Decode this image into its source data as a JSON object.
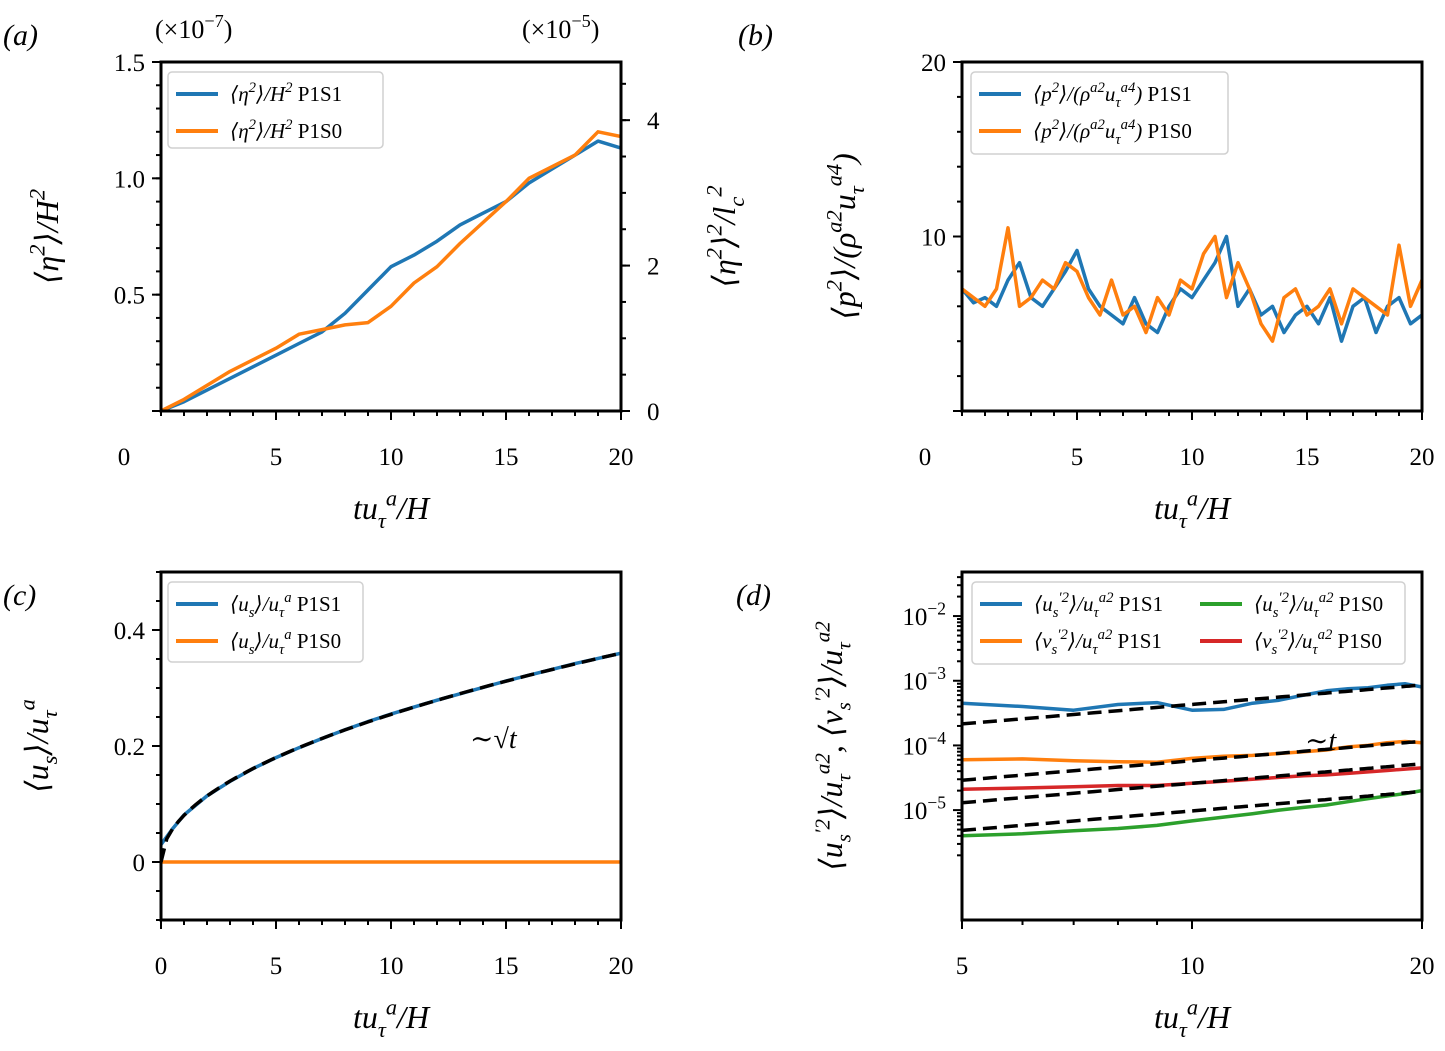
{
  "chart_data": [
    {
      "panel": "(a)",
      "type": "line",
      "xlabel": "tu_{τ}^{a}/H",
      "ylabel": "⟨η^{2}⟩/H^{2}",
      "ylabel_right": "⟨η^{2}⟩^{2}/l_{c}^{2}",
      "multiplier_left": "(×10^{−7})",
      "multiplier_right": "(×10^{−5})",
      "xlim": [
        0,
        20
      ],
      "ylim": [
        0,
        1.5
      ],
      "ylim_right": [
        0,
        4.8
      ],
      "xticks": [
        "5",
        "10",
        "15",
        "20"
      ],
      "yticks": [
        "0.5",
        "1.0",
        "1.5"
      ],
      "yticks_right": [
        "0",
        "2",
        "4"
      ],
      "corner_zero": "0",
      "legend_placement": "top-left",
      "grid": false,
      "series": [
        {
          "math": "⟨η^{2}⟩/H^{2}",
          "case": "P1S1",
          "color": "#1f77b4",
          "x": [
            0,
            1,
            2,
            3,
            4,
            5,
            6,
            7,
            8,
            9,
            10,
            11,
            12,
            13,
            14,
            15,
            16,
            17,
            18,
            19,
            20
          ],
          "y": [
            0,
            0.04,
            0.09,
            0.14,
            0.19,
            0.24,
            0.29,
            0.34,
            0.42,
            0.52,
            0.62,
            0.67,
            0.73,
            0.8,
            0.85,
            0.9,
            0.98,
            1.04,
            1.1,
            1.16,
            1.13
          ]
        },
        {
          "math": "⟨η^{2}⟩/H^{2}",
          "case": "P1S0",
          "color": "#ff7f0e",
          "x": [
            0,
            1,
            2,
            3,
            4,
            5,
            6,
            7,
            8,
            9,
            10,
            11,
            12,
            13,
            14,
            15,
            16,
            17,
            18,
            19,
            20
          ],
          "y": [
            0,
            0.05,
            0.11,
            0.17,
            0.22,
            0.27,
            0.33,
            0.35,
            0.37,
            0.38,
            0.45,
            0.55,
            0.62,
            0.72,
            0.81,
            0.9,
            1.0,
            1.05,
            1.1,
            1.2,
            1.18
          ]
        }
      ]
    },
    {
      "panel": "(b)",
      "type": "line",
      "xlabel": "tu_{τ}^{a}/H",
      "ylabel": "⟨p^{2}⟩/(ρ^{a2}u_{τ}^{a4})",
      "xlim": [
        0,
        20
      ],
      "ylim": [
        0,
        20
      ],
      "xticks": [
        "5",
        "10",
        "15",
        "20"
      ],
      "yticks": [
        "10",
        "20"
      ],
      "corner_zero": "0",
      "legend_placement": "top-left",
      "grid": false,
      "series": [
        {
          "math": "⟨p^{2}⟩/(ρ^{a2}u_{τ}^{a4})",
          "case": "P1S1",
          "color": "#1f77b4",
          "x": [
            0,
            0.5,
            1,
            1.5,
            2,
            2.5,
            3,
            3.5,
            4,
            4.5,
            5,
            5.5,
            6,
            6.5,
            7,
            7.5,
            8,
            8.5,
            9,
            9.5,
            10,
            10.5,
            11,
            11.5,
            12,
            12.5,
            13,
            13.5,
            14,
            14.5,
            15,
            15.5,
            16,
            16.5,
            17,
            17.5,
            18,
            18.5,
            19,
            19.5,
            20
          ],
          "y": [
            7.0,
            6.2,
            6.5,
            6.0,
            7.5,
            8.5,
            6.5,
            6.0,
            7.0,
            8.0,
            9.2,
            7.0,
            6.0,
            5.5,
            5.0,
            6.5,
            5.0,
            4.5,
            6.0,
            7.0,
            6.5,
            7.5,
            8.5,
            10.0,
            6.0,
            7.0,
            5.5,
            6.0,
            4.5,
            5.5,
            6.0,
            5.0,
            6.5,
            4.0,
            6.0,
            6.5,
            4.5,
            6.0,
            6.5,
            5.0,
            5.5
          ]
        },
        {
          "math": "⟨p^{2}⟩/(ρ^{a2}u_{τ}^{a4})",
          "case": "P1S0",
          "color": "#ff7f0e",
          "x": [
            0,
            0.5,
            1,
            1.5,
            2,
            2.5,
            3,
            3.5,
            4,
            4.5,
            5,
            5.5,
            6,
            6.5,
            7,
            7.5,
            8,
            8.5,
            9,
            9.5,
            10,
            10.5,
            11,
            11.5,
            12,
            12.5,
            13,
            13.5,
            14,
            14.5,
            15,
            15.5,
            16,
            16.5,
            17,
            17.5,
            18,
            18.5,
            19,
            19.5,
            20
          ],
          "y": [
            7.0,
            6.5,
            6.0,
            7.0,
            10.5,
            6.0,
            6.5,
            7.5,
            7.0,
            8.5,
            8.0,
            6.5,
            5.5,
            7.5,
            5.5,
            6.0,
            4.5,
            6.5,
            5.5,
            7.5,
            7.0,
            9.0,
            10.0,
            6.5,
            8.5,
            7.0,
            5.0,
            4.0,
            6.5,
            7.0,
            5.5,
            6.0,
            7.0,
            5.0,
            7.0,
            6.5,
            6.0,
            5.5,
            9.5,
            6.0,
            7.5
          ]
        }
      ]
    },
    {
      "panel": "(c)",
      "type": "line",
      "xlabel": "tu_{τ}^{a}/H",
      "ylabel": "⟨u_{s}⟩/u_{τ}^{a}",
      "xlim": [
        0,
        20
      ],
      "ylim": [
        -0.1,
        0.5
      ],
      "xticks": [
        "0",
        "5",
        "10",
        "15",
        "20"
      ],
      "yticks": [
        "0",
        "0.2",
        "0.4"
      ],
      "legend_placement": "top-left",
      "grid": false,
      "annotation": "∼√t",
      "series": [
        {
          "math": "⟨u_{s}⟩/u_{τ}^{a}",
          "case": "P1S1",
          "color": "#1f77b4",
          "x": [
            0,
            0.5,
            1,
            2,
            3,
            4,
            5,
            6,
            7,
            8,
            9,
            10,
            11,
            12,
            13,
            14,
            15,
            16,
            17,
            18,
            19,
            20
          ],
          "y": [
            0.03,
            0.057,
            0.081,
            0.114,
            0.139,
            0.161,
            0.18,
            0.197,
            0.213,
            0.228,
            0.242,
            0.255,
            0.267,
            0.279,
            0.29,
            0.301,
            0.312,
            0.322,
            0.332,
            0.342,
            0.351,
            0.36
          ]
        },
        {
          "math": "⟨u_{s}⟩/u_{τ}^{a}",
          "case": "P1S0",
          "color": "#ff7f0e",
          "x": [
            0,
            20
          ],
          "y": [
            0,
            0
          ]
        }
      ],
      "fits": [
        {
          "form": "a*sqrt(t)",
          "a": 0.0805,
          "color": "#000000",
          "style": "dashed"
        }
      ]
    },
    {
      "panel": "(d)",
      "type": "line",
      "xlabel": "tu_{τ}^{a}/H",
      "ylabel": "⟨u_{s}^{′2}⟩/u_{τ}^{a2}, ⟨v_{s}^{′2}⟩/u_{τ}^{a2}",
      "xscale": "log",
      "yscale": "log",
      "xlim": [
        5,
        20
      ],
      "ylim": [
        2e-07,
        0.048
      ],
      "xticks": [
        "5",
        "10",
        "20"
      ],
      "yticks": [
        "10^{−5}",
        "10^{−4}",
        "10^{−3}",
        "10^{−2}"
      ],
      "legend_placement": "top",
      "grid": false,
      "annotation": "∼t",
      "series": [
        {
          "math": "⟨u_{s}^{′2}⟩/u_{τ}^{a2}",
          "case": "P1S1",
          "color": "#1f77b4",
          "x": [
            5,
            6,
            7,
            8,
            9,
            10,
            11,
            12,
            13,
            14,
            15,
            16,
            17,
            18,
            19,
            20
          ],
          "y": [
            0.00045,
            0.0004,
            0.00035,
            0.00043,
            0.00046,
            0.00035,
            0.00036,
            0.00045,
            0.0005,
            0.0006,
            0.0007,
            0.00075,
            0.00078,
            0.00085,
            0.0009,
            0.0008
          ]
        },
        {
          "math": "⟨v_{s}^{′2}⟩/u_{τ}^{a2}",
          "case": "P1S1",
          "color": "#ff7f0e",
          "x": [
            5,
            6,
            7,
            8,
            9,
            10,
            11,
            12,
            13,
            14,
            15,
            16,
            17,
            18,
            19,
            20
          ],
          "y": [
            6e-05,
            6.2e-05,
            5.8e-05,
            5.6e-05,
            5.5e-05,
            6.3e-05,
            6.8e-05,
            7e-05,
            7.5e-05,
            8e-05,
            8.5e-05,
            9.5e-05,
            0.0001,
            0.00011,
            0.000115,
            0.00011
          ]
        },
        {
          "math": "⟨u_{s}^{′2}⟩/u_{τ}^{a2}",
          "case": "P1S0",
          "color": "#2ca02c",
          "x": [
            5,
            6,
            7,
            8,
            9,
            10,
            11,
            12,
            13,
            14,
            15,
            16,
            17,
            18,
            19,
            20
          ],
          "y": [
            4e-06,
            4.3e-06,
            4.8e-06,
            5.2e-06,
            5.8e-06,
            6.8e-06,
            7.8e-06,
            8.8e-06,
            1e-05,
            1.1e-05,
            1.2e-05,
            1.35e-05,
            1.5e-05,
            1.65e-05,
            1.8e-05,
            2e-05
          ]
        },
        {
          "math": "⟨v_{s}^{′2}⟩/u_{τ}^{a2}",
          "case": "P1S0",
          "color": "#d62728",
          "x": [
            5,
            6,
            7,
            8,
            9,
            10,
            11,
            12,
            13,
            14,
            15,
            16,
            17,
            18,
            19,
            20
          ],
          "y": [
            2.1e-05,
            2.2e-05,
            2.3e-05,
            2.4e-05,
            2.4e-05,
            2.6e-05,
            2.8e-05,
            3e-05,
            3.2e-05,
            3.4e-05,
            3.5e-05,
            3.7e-05,
            3.9e-05,
            4.1e-05,
            4.3e-05,
            4.5e-05
          ]
        }
      ],
      "fits": [
        {
          "form": "a*t",
          "a": 4.3e-05,
          "color": "#000000",
          "style": "dashed"
        },
        {
          "form": "a*t",
          "a": 5.8e-06,
          "color": "#000000",
          "style": "dashed"
        },
        {
          "form": "a*t",
          "a": 2.6e-06,
          "color": "#000000",
          "style": "dashed"
        },
        {
          "form": "a*t",
          "a": 9.7e-07,
          "color": "#000000",
          "style": "dashed"
        }
      ]
    }
  ]
}
